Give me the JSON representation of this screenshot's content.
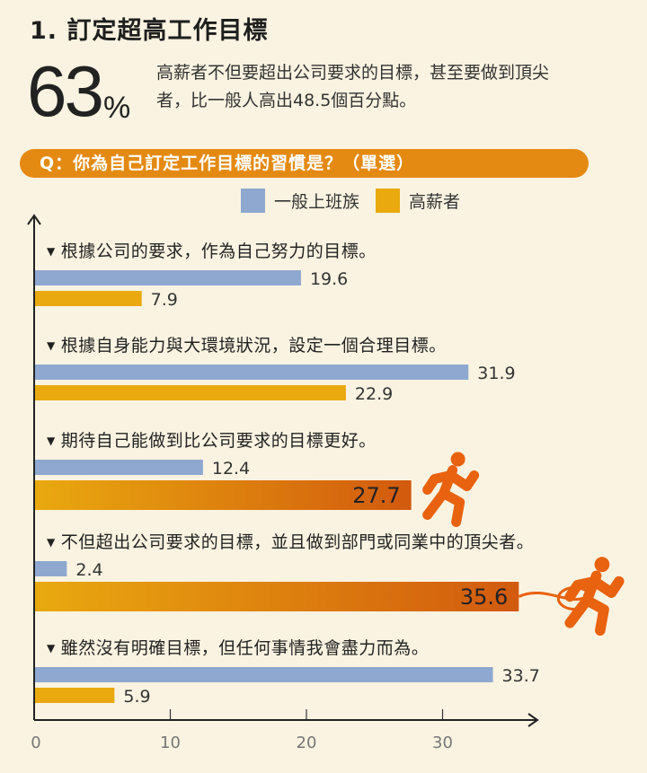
{
  "heading": "1. 訂定超高工作目標",
  "stat": {
    "value": "63",
    "unit": "%",
    "description": "高薪者不但要超出公司要求的目標，甚至要做到頂尖者，比一般人高出48.5個百分點。"
  },
  "question": "Q：你為自己訂定工作目標的習慣是？（單選）",
  "colors": {
    "general": "#8ea8d0",
    "high": "#e9a90f",
    "high_dark": "#d25a0e",
    "runner": "#e8620f",
    "band": "#e48a13",
    "axis": "#222222"
  },
  "icons": [
    "runner-icon",
    "runner-with-rope-icon"
  ],
  "chart_data": {
    "type": "bar",
    "orientation": "horizontal",
    "categories": [
      "根據公司的要求，作為自己努力的目標。",
      "根據自身能力與大環境狀況，設定一個合理目標。",
      "期待自己能做到比公司要求的目標更好。",
      "不但超出公司要求的目標，並且做到部門或同業中的頂尖者。",
      "雖然沒有明確目標，但任何事情我會盡力而為。"
    ],
    "series": [
      {
        "name": "一般上班族",
        "values": [
          19.6,
          31.9,
          12.4,
          2.4,
          33.7
        ]
      },
      {
        "name": "高薪者",
        "values": [
          7.9,
          22.9,
          27.7,
          35.6,
          5.9
        ]
      }
    ],
    "x_ticks": [
      "0",
      "10",
      "20",
      "30"
    ],
    "xlim": [
      0,
      36
    ],
    "legend": "top",
    "grid": true
  }
}
